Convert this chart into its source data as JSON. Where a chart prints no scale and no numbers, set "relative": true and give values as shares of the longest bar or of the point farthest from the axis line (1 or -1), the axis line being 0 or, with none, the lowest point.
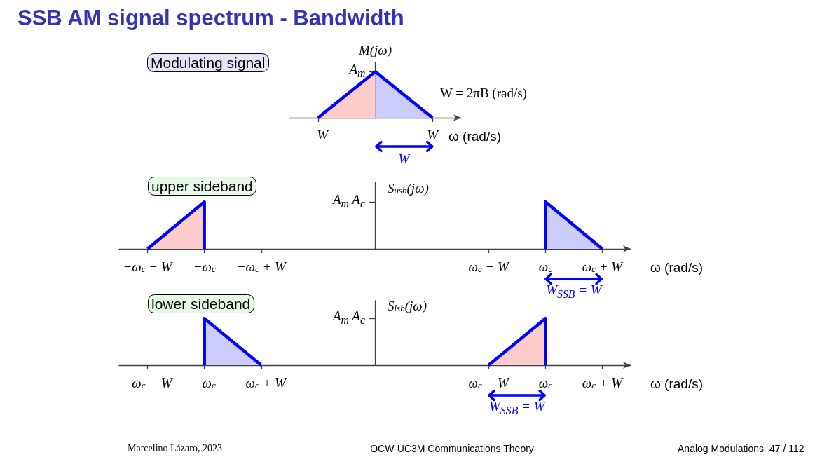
{
  "chart_data": [
    {
      "type": "area",
      "title": "SSB AM signal spectrum - Bandwidth",
      "subtitle": "Modulating signal",
      "ylabel": "M(jω)",
      "xlabel": "ω (rad/s)",
      "relative": true,
      "tick_labels": "x",
      "categories": [
        "−W",
        null,
        "W"
      ],
      "series": [
        {
          "color": "#ffcccc",
          "values": [
            0,
            1,
            null
          ]
        },
        {
          "color": "#ccccff",
          "values": [
            null,
            1,
            0
          ]
        }
      ],
      "annotations": [
        "A$_{m}$",
        "W = 2πB (rad/s)",
        "W"
      ]
    },
    {
      "type": "area",
      "subtitle": "upper sideband",
      "ylabel": "S$_{usb}$(jω)",
      "xlabel": "ω (rad/s)",
      "relative": true,
      "tick_labels": "x",
      "categories": [
        "−ω$_{c}$ − W",
        "−ω$_{c}$",
        "−ω$_{c}$ + W",
        null,
        null,
        null,
        "ω$_{c}$ − W",
        "ω$_{c}$",
        "ω$_{c}$ + W"
      ],
      "series": [
        {
          "color": "#ffcccc",
          "x": [
            "−ω$_{c}$ − W",
            "−ω$_{c}$",
            "−ω$_{c}$"
          ],
          "values": [
            0,
            1,
            0
          ]
        },
        {
          "color": "#ccccff",
          "x": [
            "ω$_{c}$",
            "ω$_{c}$",
            "ω$_{c}$ + W"
          ],
          "values": [
            0,
            1,
            0
          ]
        }
      ],
      "annotations": [
        "A$_{m}$ A$_{c}$",
        "W$_{SSB}$ = W"
      ]
    },
    {
      "type": "area",
      "subtitle": "lower sideband",
      "ylabel": "S$_{lsb}$(jω)",
      "xlabel": "ω (rad/s)",
      "relative": true,
      "tick_labels": "x",
      "categories": [
        "−ω$_{c}$ − W",
        "−ω$_{c}$",
        "−ω$_{c}$ + W",
        null,
        null,
        null,
        "ω$_{c}$ − W",
        "ω$_{c}$",
        "ω$_{c}$ + W"
      ],
      "series": [
        {
          "color": "#ccccff",
          "x": [
            "−ω$_{c}$",
            "−ω$_{c}$",
            "−ω$_{c}$ + W"
          ],
          "values": [
            0,
            1,
            0
          ]
        },
        {
          "color": "#ffcccc",
          "x": [
            "ω$_{c}$ − W",
            "ω$_{c}$",
            "ω$_{c}$"
          ],
          "values": [
            0,
            1,
            0
          ]
        }
      ],
      "annotations": [
        "A$_{m}$ A$_{c}$",
        "W$_{SSB}$ = W",
        "Marcelino Lázaro, 2023",
        "OCW-UC3M Communications Theory",
        "Analog Modulations",
        "47 / 112"
      ]
    }
  ]
}
